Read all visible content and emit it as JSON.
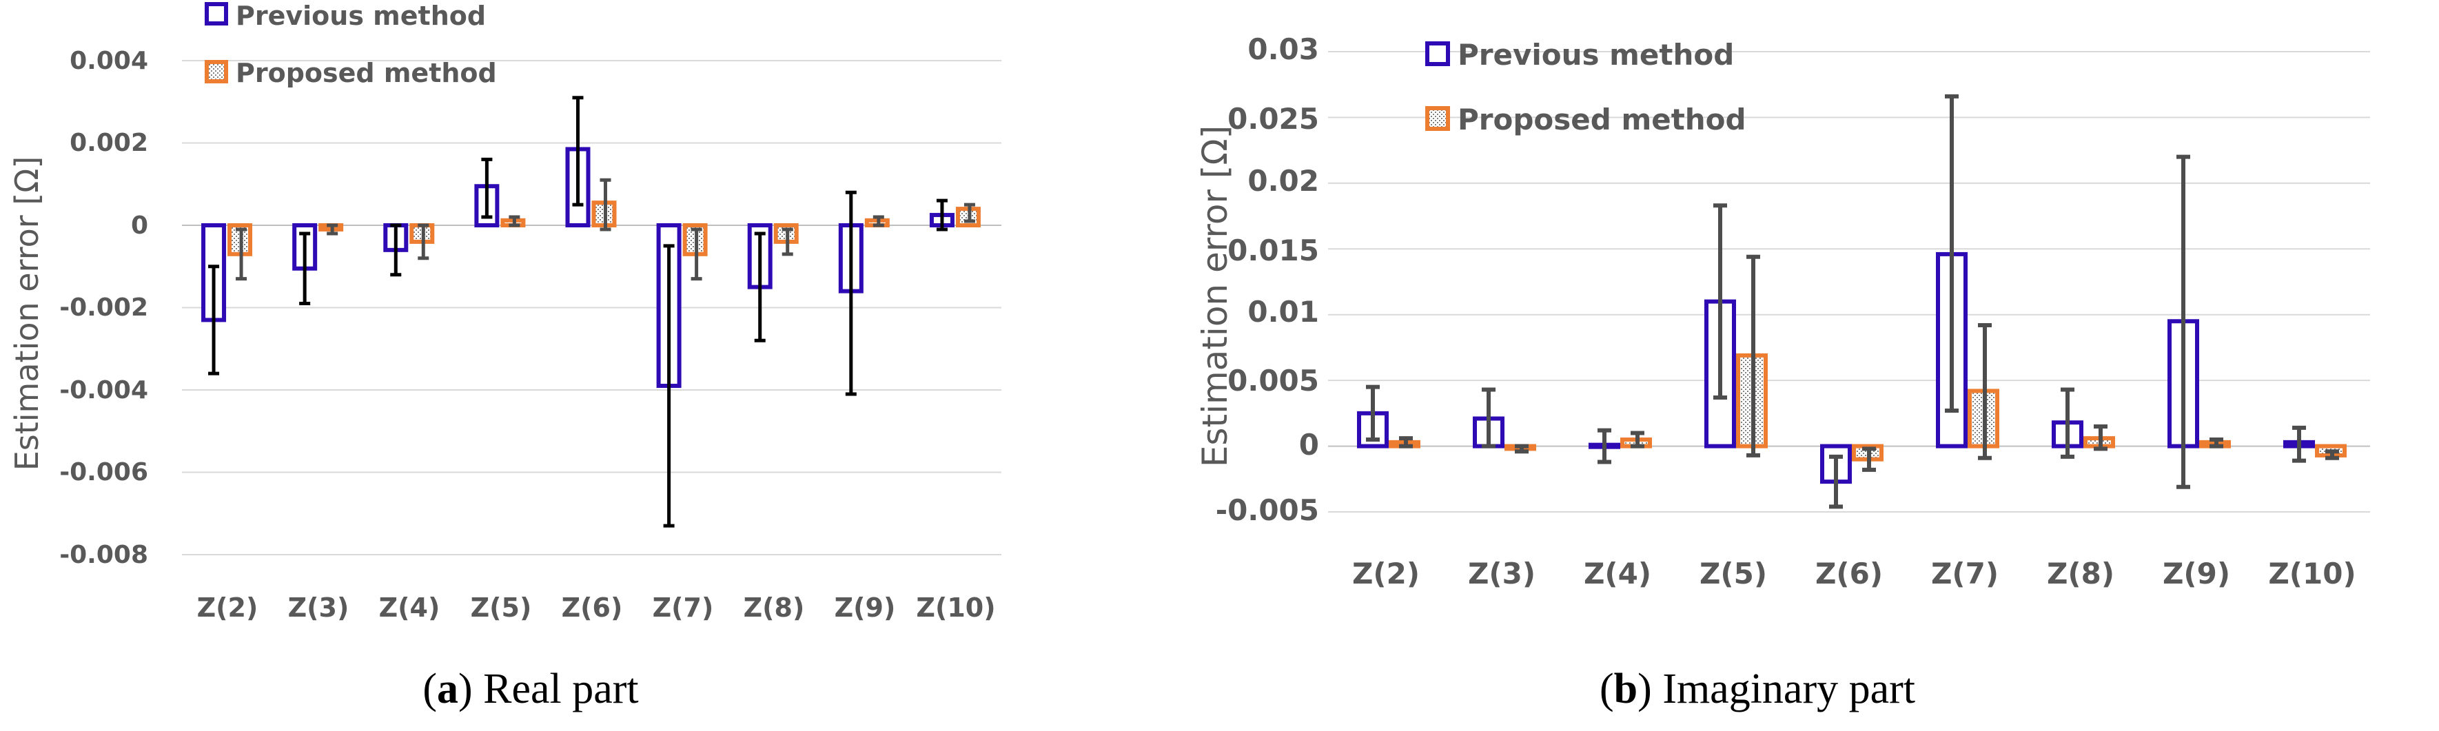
{
  "colors": {
    "previous": "#2e0ab5",
    "proposed": "#ed7d31",
    "grid": "#d9d9d9",
    "errbar_a": "#000000",
    "errbar_b": "#4d4d4d"
  },
  "chart_data": [
    {
      "id": "a",
      "type": "bar",
      "ylabel": "Estimation error [Ω]",
      "xlabel": "",
      "caption_letter": "a",
      "caption_text": " Real part",
      "ylim": [
        -0.008,
        0.004
      ],
      "yticks": [
        0.004,
        0.002,
        0,
        -0.002,
        -0.004,
        -0.006,
        -0.008
      ],
      "ytick_labels": [
        "0.004",
        "0.002",
        "0",
        "-0.002",
        "-0.004",
        "-0.006",
        "-0.008"
      ],
      "categories": [
        "Z(2)",
        "Z(3)",
        "Z(4)",
        "Z(5)",
        "Z(6)",
        "Z(7)",
        "Z(8)",
        "Z(9)",
        "Z(10)"
      ],
      "legend": [
        "Previous method",
        "Proposed method"
      ],
      "series": [
        {
          "name": "Previous method",
          "values": [
            -0.0023,
            -0.00105,
            -0.0006,
            0.00095,
            0.00185,
            -0.0039,
            -0.0015,
            -0.0016,
            0.00025
          ],
          "err_low": [
            -0.0036,
            -0.0019,
            -0.0012,
            0.0002,
            0.0005,
            -0.0073,
            -0.0028,
            -0.0041,
            -0.0001
          ],
          "err_high": [
            -0.001,
            -0.0002,
            0.0,
            0.0016,
            0.0031,
            -0.0005,
            -0.0002,
            0.0008,
            0.0006
          ]
        },
        {
          "name": "Proposed method",
          "values": [
            -0.0007,
            -0.0001,
            -0.0004,
            0.00012,
            0.00055,
            -0.0007,
            -0.0004,
            0.00012,
            0.0004
          ],
          "err_low": [
            -0.0013,
            -0.0002,
            -0.0008,
            0.0,
            -0.0001,
            -0.0013,
            -0.0007,
            0.0,
            0.0001
          ],
          "err_high": [
            -0.0001,
            0.0,
            0.0,
            0.0002,
            0.0011,
            -0.0001,
            -0.0001,
            0.0002,
            0.0005
          ]
        }
      ]
    },
    {
      "id": "b",
      "type": "bar",
      "ylabel": "Estimation error [Ω]",
      "xlabel": "",
      "caption_letter": "b",
      "caption_text": " Imaginary part",
      "ylim": [
        -0.005,
        0.03
      ],
      "yticks": [
        0.03,
        0.025,
        0.02,
        0.015,
        0.01,
        0.005,
        0,
        -0.005
      ],
      "ytick_labels": [
        "0.03",
        "0.025",
        "0.02",
        "0.015",
        "0.01",
        "0.005",
        "0",
        "-0.005"
      ],
      "categories": [
        "Z(2)",
        "Z(3)",
        "Z(4)",
        "Z(5)",
        "Z(6)",
        "Z(7)",
        "Z(8)",
        "Z(9)",
        "Z(10)"
      ],
      "legend": [
        "Previous method",
        "Proposed method"
      ],
      "series": [
        {
          "name": "Previous method",
          "values": [
            0.0025,
            0.0021,
            0.0001,
            0.011,
            -0.0027,
            0.0146,
            0.0018,
            0.0095,
            0.0003
          ],
          "err_low": [
            0.0005,
            0.0,
            -0.0012,
            0.0037,
            -0.0046,
            0.0027,
            -0.0008,
            -0.0031,
            -0.0011
          ],
          "err_high": [
            0.0045,
            0.0043,
            0.0012,
            0.0183,
            -0.0008,
            0.0266,
            0.0043,
            0.022,
            0.0014
          ]
        },
        {
          "name": "Proposed method",
          "values": [
            0.0003,
            -0.0002,
            0.0005,
            0.0069,
            -0.001,
            0.0042,
            0.0006,
            0.0003,
            -0.0007
          ],
          "err_low": [
            0.0,
            -0.0004,
            0.0,
            -0.0007,
            -0.0018,
            -0.0009,
            -0.0002,
            0.0,
            -0.0009
          ],
          "err_high": [
            0.0006,
            0.0,
            0.001,
            0.0144,
            -0.0002,
            0.0092,
            0.0015,
            0.0005,
            -0.0004
          ]
        }
      ]
    }
  ]
}
